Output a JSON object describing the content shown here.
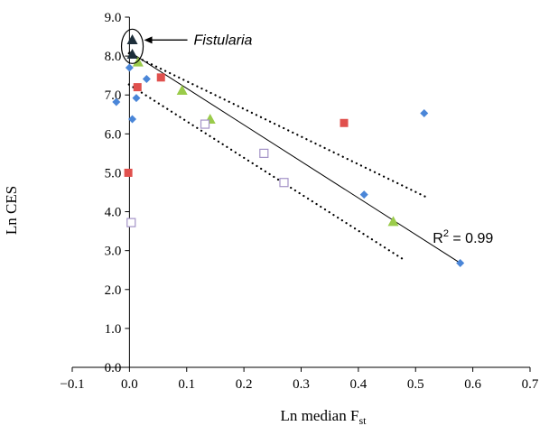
{
  "chart_data": {
    "type": "scatter",
    "xlabel": "Ln median F",
    "xlabel_sub": "st",
    "ylabel": "Ln CES",
    "xlim": [
      -0.1,
      0.7
    ],
    "ylim": [
      0.0,
      9.0
    ],
    "x_ticks": [
      "−0.1",
      "0.0",
      "0.1",
      "0.2",
      "0.3",
      "0.4",
      "0.5",
      "0.6",
      "0.7"
    ],
    "x_tick_values": [
      -0.1,
      0.0,
      0.1,
      0.2,
      0.3,
      0.4,
      0.5,
      0.6,
      0.7
    ],
    "y_ticks": [
      "0.0",
      "1.0",
      "2.0",
      "3.0",
      "4.0",
      "5.0",
      "6.0",
      "7.0",
      "8.0",
      "9.0"
    ],
    "y_tick_values": [
      0,
      1,
      2,
      3,
      4,
      5,
      6,
      7,
      8,
      9
    ],
    "grid": false,
    "series": [
      {
        "marker": "diamond",
        "color": "#4a86d8",
        "points": [
          [
            -0.023,
            6.82
          ],
          [
            0.0,
            7.7
          ],
          [
            0.005,
            6.38
          ],
          [
            0.012,
            6.92
          ],
          [
            0.03,
            7.41
          ],
          [
            0.41,
            4.44
          ],
          [
            0.515,
            6.53
          ],
          [
            0.578,
            2.68
          ]
        ]
      },
      {
        "marker": "square",
        "color": "#e0504d",
        "points": [
          [
            -0.002,
            5.0
          ],
          [
            0.014,
            7.2
          ],
          [
            0.055,
            7.45
          ],
          [
            0.375,
            6.28
          ]
        ]
      },
      {
        "marker": "triangle",
        "color": "#9acb4a",
        "points": [
          [
            0.015,
            7.85
          ],
          [
            0.092,
            7.12
          ],
          [
            0.141,
            6.38
          ],
          [
            0.461,
            3.75
          ]
        ]
      },
      {
        "marker": "open-square",
        "color": "#a493c7",
        "points": [
          [
            0.003,
            3.72
          ],
          [
            0.132,
            6.25
          ],
          [
            0.235,
            5.5
          ],
          [
            0.27,
            4.75
          ]
        ]
      },
      {
        "marker": "dark-triangle",
        "color": "#1d2e3a",
        "points": [
          [
            0.005,
            8.42
          ],
          [
            0.005,
            8.05
          ]
        ]
      }
    ],
    "trendline": {
      "from": [
        -0.001,
        8.12
      ],
      "to": [
        0.578,
        2.68
      ]
    },
    "confidence_bands": [
      {
        "from": [
          -0.001,
          8.07
        ],
        "to": [
          0.518,
          4.38
        ]
      },
      {
        "from": [
          -0.001,
          7.27
        ],
        "to": [
          0.478,
          2.78
        ]
      }
    ],
    "annotations": {
      "r2_prefix": "R",
      "r2_sup": "2",
      "r2_suffix": " = 0.99",
      "r2_anchor": [
        0.53,
        3.2
      ],
      "highlight_label": "Fistularia",
      "highlight_point": [
        0.005,
        8.25
      ]
    }
  }
}
